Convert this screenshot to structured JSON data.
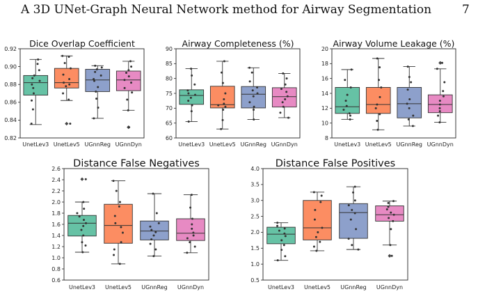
{
  "header": {
    "title": "A 3D UNet-Graph Neural Network method for Airway Segmentation",
    "page_number": "7"
  },
  "chart_data": [
    {
      "type": "box",
      "title": "Dice Overlap Coefficient",
      "categories": [
        "UnetLev3",
        "UnetLev5",
        "UGnnReg",
        "UGnnDyn"
      ],
      "colors": [
        "#66c2a5",
        "#fc8d62",
        "#8da0cb",
        "#e78ac3"
      ],
      "ylim": [
        0.82,
        0.92
      ],
      "yticks": [
        "0.82",
        "0.84",
        "0.86",
        "0.88",
        "0.90",
        "0.92"
      ],
      "boxes": [
        {
          "whislo": 0.835,
          "q1": 0.868,
          "med": 0.882,
          "q3": 0.89,
          "whishi": 0.908,
          "fliers": []
        },
        {
          "whislo": 0.862,
          "q1": 0.876,
          "med": 0.882,
          "q3": 0.898,
          "whishi": 0.912,
          "fliers": [
            0.836
          ]
        },
        {
          "whislo": 0.842,
          "q1": 0.872,
          "med": 0.885,
          "q3": 0.897,
          "whishi": 0.901,
          "fliers": []
        },
        {
          "whislo": 0.851,
          "q1": 0.873,
          "med": 0.885,
          "q3": 0.895,
          "whishi": 0.906,
          "fliers": [
            0.832
          ]
        }
      ],
      "points": [
        [
          0.836,
          0.852,
          0.862,
          0.87,
          0.876,
          0.88,
          0.884,
          0.887,
          0.89,
          0.896,
          0.903,
          0.908
        ],
        [
          0.836,
          0.863,
          0.87,
          0.878,
          0.88,
          0.882,
          0.886,
          0.891,
          0.898,
          0.904,
          0.911,
          0.912
        ],
        [
          0.842,
          0.854,
          0.864,
          0.872,
          0.877,
          0.884,
          0.886,
          0.89,
          0.894,
          0.897,
          0.899,
          0.901
        ],
        [
          0.832,
          0.851,
          0.863,
          0.871,
          0.876,
          0.882,
          0.885,
          0.889,
          0.893,
          0.896,
          0.9,
          0.906
        ]
      ]
    },
    {
      "type": "box",
      "title": "Airway Completeness (%)",
      "categories": [
        "UnetLev3",
        "UnetLev5",
        "UGnnReg",
        "UGnnDyn"
      ],
      "colors": [
        "#66c2a5",
        "#fc8d62",
        "#8da0cb",
        "#e78ac3"
      ],
      "ylim": [
        60,
        90
      ],
      "yticks": [
        "60",
        "65",
        "70",
        "75",
        "80",
        "85",
        "90"
      ],
      "boxes": [
        {
          "whislo": 65.5,
          "q1": 71.3,
          "med": 74.3,
          "q3": 76.2,
          "whishi": 83.3,
          "fliers": []
        },
        {
          "whislo": 63.0,
          "q1": 70.1,
          "med": 71.2,
          "q3": 77.4,
          "whishi": 85.8,
          "fliers": []
        },
        {
          "whislo": 66.2,
          "q1": 70.1,
          "med": 74.7,
          "q3": 77.3,
          "whishi": 83.6,
          "fliers": []
        },
        {
          "whislo": 66.8,
          "q1": 70.4,
          "med": 73.9,
          "q3": 76.9,
          "whishi": 81.7,
          "fliers": []
        }
      ],
      "points": [
        [
          65.5,
          69.0,
          71.0,
          72.5,
          73.5,
          74.5,
          75.0,
          76.0,
          78.0,
          81.0,
          83.3
        ],
        [
          63.0,
          66.0,
          69.5,
          70.5,
          71.0,
          71.5,
          73.0,
          75.0,
          78.5,
          82.0,
          85.8
        ],
        [
          66.2,
          69.5,
          70.5,
          72.0,
          74.0,
          75.0,
          76.0,
          77.0,
          79.0,
          82.0,
          83.6
        ],
        [
          66.8,
          68.5,
          70.5,
          72.0,
          73.0,
          74.0,
          75.5,
          76.5,
          78.0,
          80.0,
          81.7
        ]
      ]
    },
    {
      "type": "box",
      "title": "Airway Volume Leakage (%)",
      "categories": [
        "UnetLev3",
        "UnetLev5",
        "UGnnReg",
        "UGnnDyn"
      ],
      "colors": [
        "#66c2a5",
        "#fc8d62",
        "#8da0cb",
        "#e78ac3"
      ],
      "ylim": [
        8,
        20
      ],
      "yticks": [
        "8",
        "10",
        "12",
        "14",
        "16",
        "18",
        "20"
      ],
      "boxes": [
        {
          "whislo": 10.5,
          "q1": 11.3,
          "med": 12.2,
          "q3": 14.8,
          "whishi": 17.2,
          "fliers": []
        },
        {
          "whislo": 9.1,
          "q1": 11.3,
          "med": 12.5,
          "q3": 14.8,
          "whishi": 18.7,
          "fliers": []
        },
        {
          "whislo": 9.6,
          "q1": 10.7,
          "med": 12.6,
          "q3": 14.8,
          "whishi": 17.6,
          "fliers": []
        },
        {
          "whislo": 10.1,
          "q1": 11.4,
          "med": 12.5,
          "q3": 13.8,
          "whishi": 17.3,
          "fliers": [
            18.1
          ]
        }
      ],
      "points": [
        [
          10.5,
          11.0,
          11.3,
          11.8,
          12.3,
          13.0,
          13.8,
          14.8,
          15.8,
          17.2
        ],
        [
          9.1,
          10.3,
          11.2,
          12.0,
          12.5,
          13.5,
          14.8,
          15.8,
          17.5,
          18.7
        ],
        [
          9.6,
          10.5,
          11.0,
          12.0,
          12.6,
          13.2,
          14.5,
          15.5,
          16.2,
          17.6
        ],
        [
          10.1,
          11.0,
          11.6,
          12.0,
          12.5,
          13.0,
          13.6,
          14.3,
          15.5,
          17.3,
          18.1
        ]
      ]
    },
    {
      "type": "box",
      "title": "Distance False Negatives",
      "categories": [
        "UnetLev3",
        "UnetLev5",
        "UGnnReg",
        "UGnnDyn"
      ],
      "colors": [
        "#66c2a5",
        "#fc8d62",
        "#8da0cb",
        "#e78ac3"
      ],
      "ylim": [
        0.6,
        2.6
      ],
      "yticks": [
        "0.6",
        "0.8",
        "1.0",
        "1.2",
        "1.4",
        "1.6",
        "1.8",
        "2.0",
        "2.2",
        "2.4",
        "2.6"
      ],
      "boxes": [
        {
          "whislo": 1.1,
          "q1": 1.39,
          "med": 1.62,
          "q3": 1.76,
          "whishi": 2.0,
          "fliers": [
            2.41
          ]
        },
        {
          "whislo": 0.89,
          "q1": 1.26,
          "med": 1.58,
          "q3": 1.96,
          "whishi": 2.38,
          "fliers": []
        },
        {
          "whislo": 1.03,
          "q1": 1.32,
          "med": 1.48,
          "q3": 1.66,
          "whishi": 2.15,
          "fliers": []
        },
        {
          "whislo": 1.09,
          "q1": 1.31,
          "med": 1.44,
          "q3": 1.7,
          "whishi": 2.13,
          "fliers": []
        }
      ],
      "points": [
        [
          1.1,
          1.22,
          1.28,
          1.4,
          1.5,
          1.57,
          1.62,
          1.68,
          1.74,
          1.8,
          1.88,
          2.0,
          2.41
        ],
        [
          0.89,
          1.05,
          1.15,
          1.28,
          1.45,
          1.55,
          1.62,
          1.75,
          1.92,
          2.0,
          2.2,
          2.38
        ],
        [
          1.03,
          1.15,
          1.25,
          1.33,
          1.4,
          1.46,
          1.5,
          1.56,
          1.62,
          1.8,
          2.15
        ],
        [
          1.09,
          1.2,
          1.28,
          1.35,
          1.4,
          1.45,
          1.52,
          1.6,
          1.7,
          1.9,
          2.13
        ]
      ]
    },
    {
      "type": "box",
      "title": "Distance False Positives",
      "categories": [
        "UnetLev3",
        "UnetLev5",
        "UGnnReg",
        "UGnnDyn"
      ],
      "colors": [
        "#66c2a5",
        "#fc8d62",
        "#8da0cb",
        "#e78ac3"
      ],
      "ylim": [
        0.5,
        4.0
      ],
      "yticks": [
        "0.5",
        "1.0",
        "1.5",
        "2.0",
        "2.5",
        "3.0",
        "3.5",
        "4.0"
      ],
      "boxes": [
        {
          "whislo": 1.12,
          "q1": 1.64,
          "med": 1.94,
          "q3": 2.16,
          "whishi": 2.3,
          "fliers": []
        },
        {
          "whislo": 1.42,
          "q1": 1.76,
          "med": 2.14,
          "q3": 3.0,
          "whishi": 3.26,
          "fliers": []
        },
        {
          "whislo": 1.46,
          "q1": 1.81,
          "med": 2.62,
          "q3": 2.9,
          "whishi": 3.43,
          "fliers": []
        },
        {
          "whislo": 1.6,
          "q1": 2.35,
          "med": 2.55,
          "q3": 2.83,
          "whishi": 2.98,
          "fliers": [
            1.26
          ]
        }
      ],
      "points": [
        [
          1.12,
          1.25,
          1.45,
          1.6,
          1.75,
          1.88,
          1.96,
          2.05,
          2.12,
          2.2,
          2.3
        ],
        [
          1.42,
          1.55,
          1.7,
          1.85,
          2.0,
          2.14,
          2.4,
          2.7,
          2.95,
          3.15,
          3.26
        ],
        [
          1.46,
          1.6,
          1.8,
          2.1,
          2.4,
          2.6,
          2.7,
          2.85,
          3.0,
          3.25,
          3.43
        ],
        [
          1.26,
          1.6,
          2.1,
          2.35,
          2.45,
          2.55,
          2.62,
          2.72,
          2.8,
          2.92,
          2.98
        ]
      ]
    }
  ]
}
